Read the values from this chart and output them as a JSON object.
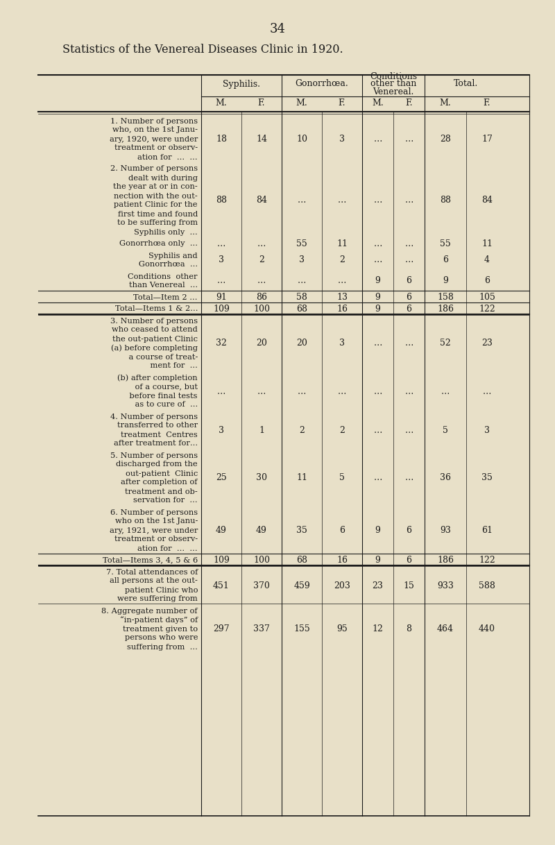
{
  "page_number": "34",
  "title": "Statistics of the Venereal Diseases Clinic in 1920.",
  "bg_color": "#e8e0c8",
  "col_headers_row1": [
    "Syphilis.",
    "Gonorrhœa.",
    "Conditions\nother than\nVenereal.",
    "Total."
  ],
  "col_headers_row2": [
    "M.",
    "F.",
    "M.",
    "F.",
    "M.",
    "F.",
    "M.",
    "F."
  ],
  "rows": [
    {
      "label_lines": [
        "1. Number of persons",
        "who, on the 1st Janu-",
        "ary, 1920, were under",
        "treatment or observ-",
        "ation for  …  …"
      ],
      "values": [
        "18",
        "14",
        "10",
        "3",
        "…",
        "…",
        "28",
        "17"
      ],
      "top_rule": false
    },
    {
      "label_lines": [
        "2. Number of persons",
        "dealt with during",
        "the year at or in con-",
        "nection with the out-",
        "patient Clinic for the",
        "first time and found",
        "to be suffering from",
        "Syphilis only  …"
      ],
      "values": [
        "88",
        "84",
        "…",
        "…",
        "…",
        "…",
        "88",
        "84"
      ],
      "top_rule": false
    },
    {
      "label_lines": [
        "Gonorrhœa only  …"
      ],
      "values": [
        "…",
        "…",
        "55",
        "11",
        "…",
        "…",
        "55",
        "11"
      ],
      "top_rule": false
    },
    {
      "label_lines": [
        "Syphilis and",
        "   Gonorrhœa  …"
      ],
      "values": [
        "3",
        "2",
        "3",
        "2",
        "…",
        "…",
        "6",
        "4"
      ],
      "top_rule": false
    },
    {
      "label_lines": [
        "Conditions  other",
        "than Venereal  …"
      ],
      "values": [
        "…",
        "…",
        "…",
        "…",
        "9",
        "6",
        "9",
        "6"
      ],
      "top_rule": false
    },
    {
      "label_lines": [
        "Total—Item 2 …"
      ],
      "values": [
        "91",
        "86",
        "58",
        "13",
        "9",
        "6",
        "158",
        "105"
      ],
      "top_rule": true
    },
    {
      "label_lines": [
        "Total—Items 1 & 2…"
      ],
      "values": [
        "109",
        "100",
        "68",
        "16",
        "9",
        "6",
        "186",
        "122"
      ],
      "top_rule": true
    },
    {
      "label_lines": [
        "3. Number of persons",
        "who ceased to attend",
        "the out-patient Clinic",
        "(a) before completing",
        "    a course of treat-",
        "    ment for  …"
      ],
      "values": [
        "32",
        "20",
        "20",
        "3",
        "…",
        "…",
        "52",
        "23"
      ],
      "top_rule": true
    },
    {
      "label_lines": [
        "(b) after completion",
        "    of a course, but",
        "    before final tests",
        "    as to cure of  …"
      ],
      "values": [
        "…",
        "…",
        "…",
        "…",
        "…",
        "…",
        "…",
        "…"
      ],
      "top_rule": false
    },
    {
      "label_lines": [
        "4. Number of persons",
        "transferred to other",
        "treatment  Centres",
        "after treatment for…"
      ],
      "values": [
        "3",
        "1",
        "2",
        "2",
        "…",
        "…",
        "5",
        "3"
      ],
      "top_rule": false
    },
    {
      "label_lines": [
        "5. Number of persons",
        "discharged from the",
        "out-patient  Clinic",
        "after completion of",
        "treatment and ob-",
        "servation for  …"
      ],
      "values": [
        "25",
        "30",
        "11",
        "5",
        "…",
        "…",
        "36",
        "35"
      ],
      "top_rule": false
    },
    {
      "label_lines": [
        "6. Number of persons",
        "who on the 1st Janu-",
        "ary, 1921, were under",
        "treatment or observ-",
        "ation for  …  …"
      ],
      "values": [
        "49",
        "49",
        "35",
        "6",
        "9",
        "6",
        "93",
        "61"
      ],
      "top_rule": false
    },
    {
      "label_lines": [
        "Total—Items 3, 4, 5 & 6"
      ],
      "values": [
        "109",
        "100",
        "68",
        "16",
        "9",
        "6",
        "186",
        "122"
      ],
      "top_rule": true
    },
    {
      "label_lines": [
        "7. Total attendances of",
        "all persons at the out-",
        "patient Clinic who",
        "were suffering from"
      ],
      "values": [
        "451",
        "370",
        "459",
        "203",
        "23",
        "15",
        "933",
        "588"
      ],
      "top_rule": true
    },
    {
      "label_lines": [
        "8. Aggregate number of",
        "“in-patient days” of",
        "treatment given to",
        "persons who were",
        "suffering from  …"
      ],
      "values": [
        "297",
        "337",
        "155",
        "95",
        "12",
        "8",
        "464",
        "440"
      ],
      "top_rule": false
    }
  ]
}
